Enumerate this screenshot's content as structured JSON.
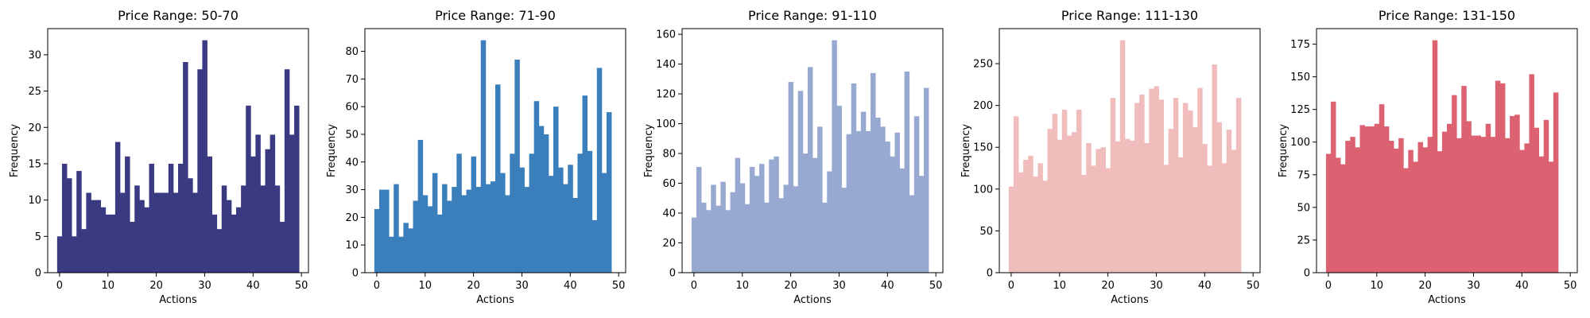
{
  "chart_data": [
    {
      "type": "bar",
      "title": "Price Range: 50-70",
      "xlabel": "Actions",
      "ylabel": "Frequency",
      "color": "#3a3a82",
      "xlim": [
        -2.45,
        51.45
      ],
      "ylim": [
        0,
        33.6
      ],
      "xticks": [
        0,
        10,
        20,
        30,
        40,
        50
      ],
      "yticks": [
        0,
        5,
        10,
        15,
        20,
        25,
        30
      ],
      "values": [
        5,
        15,
        13,
        5,
        14,
        6,
        11,
        10,
        10,
        9,
        8,
        8,
        18,
        11,
        16,
        7,
        12,
        10,
        9,
        15,
        11,
        11,
        11,
        15,
        11,
        15,
        29,
        13,
        11,
        28,
        32,
        16,
        8,
        6,
        12,
        10,
        8,
        9,
        12,
        23,
        16,
        19,
        12,
        17,
        19,
        12,
        7,
        28,
        19,
        23
      ]
    },
    {
      "type": "bar",
      "title": "Price Range: 71-90",
      "xlabel": "Actions",
      "ylabel": "Frequency",
      "color": "#3a7fbb",
      "xlim": [
        -2.45,
        51.45
      ],
      "ylim": [
        0,
        88.2
      ],
      "xticks": [
        0,
        10,
        20,
        30,
        40,
        50
      ],
      "yticks": [
        0,
        10,
        20,
        30,
        40,
        50,
        60,
        70,
        80
      ],
      "values": [
        23,
        30,
        30,
        13,
        32,
        13,
        18,
        16,
        26,
        48,
        28,
        24,
        36,
        21,
        32,
        26,
        31,
        43,
        28,
        30,
        42,
        31,
        84,
        32,
        33,
        68,
        36,
        28,
        43,
        77,
        38,
        31,
        43,
        62,
        53,
        50,
        35,
        60,
        38,
        32,
        39,
        27,
        43,
        64,
        44,
        19,
        74,
        36,
        58,
        0
      ]
    },
    {
      "type": "bar",
      "title": "Price Range: 91-110",
      "xlabel": "Actions",
      "ylabel": "Frequency",
      "color": "#98a9d1",
      "xlim": [
        -2.45,
        51.45
      ],
      "ylim": [
        0,
        163.8
      ],
      "xticks": [
        0,
        10,
        20,
        30,
        40,
        50
      ],
      "yticks": [
        0,
        20,
        40,
        60,
        80,
        100,
        120,
        140,
        160
      ],
      "values": [
        37,
        71,
        47,
        42,
        59,
        45,
        61,
        42,
        54,
        77,
        60,
        46,
        71,
        65,
        73,
        47,
        76,
        78,
        50,
        59,
        128,
        58,
        122,
        80,
        138,
        77,
        98,
        47,
        68,
        156,
        112,
        57,
        93,
        127,
        95,
        108,
        95,
        134,
        104,
        98,
        88,
        78,
        94,
        70,
        135,
        52,
        105,
        65,
        124,
        0
      ]
    },
    {
      "type": "bar",
      "title": "Price Range: 111-130",
      "xlabel": "Actions",
      "ylabel": "Frequency",
      "color": "#f0bcbc",
      "xlim": [
        -2.45,
        51.45
      ],
      "ylim": [
        0,
        291.9
      ],
      "xticks": [
        0,
        10,
        20,
        30,
        40,
        50
      ],
      "yticks": [
        0,
        50,
        100,
        150,
        200,
        250
      ],
      "values": [
        103,
        187,
        120,
        135,
        140,
        115,
        131,
        110,
        172,
        190,
        159,
        195,
        164,
        168,
        195,
        117,
        155,
        128,
        148,
        150,
        125,
        209,
        157,
        278,
        160,
        158,
        203,
        213,
        155,
        220,
        223,
        207,
        129,
        172,
        209,
        138,
        203,
        194,
        174,
        221,
        154,
        128,
        249,
        180,
        131,
        171,
        147,
        209,
        0,
        0
      ]
    },
    {
      "type": "bar",
      "title": "Price Range: 131-150",
      "xlabel": "Actions",
      "ylabel": "Frequency",
      "color": "#dc6272",
      "xlim": [
        -2.45,
        51.45
      ],
      "ylim": [
        0,
        186.9
      ],
      "xticks": [
        0,
        10,
        20,
        30,
        40,
        50
      ],
      "yticks": [
        0,
        25,
        50,
        75,
        100,
        125,
        150,
        175
      ],
      "values": [
        91,
        131,
        88,
        83,
        101,
        104,
        96,
        113,
        112,
        112,
        114,
        129,
        112,
        101,
        95,
        103,
        80,
        94,
        85,
        100,
        96,
        104,
        178,
        93,
        108,
        114,
        136,
        103,
        143,
        116,
        105,
        105,
        104,
        114,
        104,
        147,
        145,
        103,
        120,
        121,
        94,
        99,
        152,
        111,
        89,
        117,
        85,
        138,
        0,
        0
      ]
    }
  ]
}
